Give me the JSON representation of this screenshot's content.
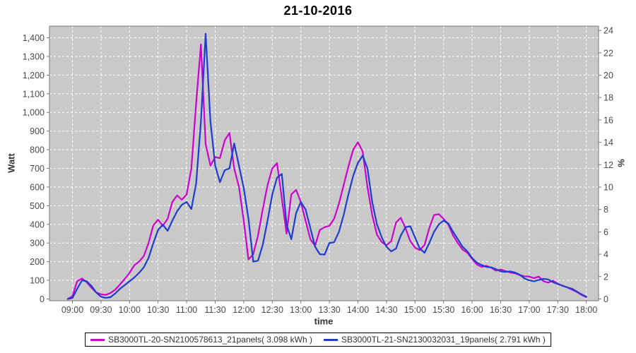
{
  "title": "21-10-2016",
  "chart_data": {
    "type": "line",
    "title": "21-10-2016",
    "xlabel": "time",
    "ylabel_left": "Watt",
    "ylabel_right": "%",
    "ylim_left": [
      0,
      1400
    ],
    "ylim_right": [
      0,
      24
    ],
    "grid": true,
    "legend_position": "bottom",
    "colors": {
      "plot_bg": "#c9c9c9",
      "grid": "#ffffff",
      "frame": "#777777",
      "tick_text": "#4a4a4a"
    },
    "x_ticks": [
      "09:00",
      "09:30",
      "10:00",
      "10:30",
      "11:00",
      "11:30",
      "12:00",
      "12:30",
      "13:00",
      "13:30",
      "14:00",
      "14:30",
      "15:00",
      "15:30",
      "16:00",
      "16:30",
      "17:00",
      "17:30",
      "18:00"
    ],
    "y_ticks_left": [
      "0",
      "100",
      "200",
      "300",
      "400",
      "500",
      "600",
      "700",
      "800",
      "900",
      "1,000",
      "1,100",
      "1,200",
      "1,300",
      "1,400"
    ],
    "y_ticks_right": [
      "0",
      "2",
      "4",
      "6",
      "8",
      "10",
      "12",
      "14",
      "16",
      "18",
      "20",
      "22",
      "24"
    ],
    "x": [
      "08:55",
      "09:00",
      "09:05",
      "09:10",
      "09:15",
      "09:20",
      "09:25",
      "09:30",
      "09:35",
      "09:40",
      "09:45",
      "09:50",
      "09:55",
      "10:00",
      "10:05",
      "10:10",
      "10:15",
      "10:20",
      "10:25",
      "10:30",
      "10:35",
      "10:40",
      "10:45",
      "10:50",
      "10:55",
      "11:00",
      "11:05",
      "11:10",
      "11:15",
      "11:20",
      "11:25",
      "11:30",
      "11:35",
      "11:40",
      "11:45",
      "11:50",
      "11:55",
      "12:00",
      "12:05",
      "12:10",
      "12:15",
      "12:20",
      "12:25",
      "12:30",
      "12:35",
      "12:40",
      "12:45",
      "12:50",
      "12:55",
      "13:00",
      "13:05",
      "13:10",
      "13:15",
      "13:20",
      "13:25",
      "13:30",
      "13:35",
      "13:40",
      "13:45",
      "13:50",
      "13:55",
      "14:00",
      "14:05",
      "14:10",
      "14:15",
      "14:20",
      "14:25",
      "14:30",
      "14:35",
      "14:40",
      "14:45",
      "14:50",
      "14:55",
      "15:00",
      "15:05",
      "15:10",
      "15:15",
      "15:20",
      "15:25",
      "15:30",
      "15:35",
      "15:40",
      "15:45",
      "15:50",
      "15:55",
      "16:00",
      "16:05",
      "16:10",
      "16:15",
      "16:20",
      "16:25",
      "16:30",
      "16:35",
      "16:40",
      "16:45",
      "16:50",
      "16:55",
      "17:00",
      "17:05",
      "17:10",
      "17:15",
      "17:20",
      "17:25",
      "17:30",
      "17:35",
      "17:40",
      "17:45",
      "17:50",
      "17:55",
      "18:00"
    ],
    "series": [
      {
        "name": "SB3000TL-20-SN2100578613_21panels( 3.098 kWh )",
        "energy": "3.098 kWh",
        "color": "#cc00cc",
        "values": [
          0,
          15,
          95,
          110,
          90,
          60,
          35,
          25,
          22,
          32,
          50,
          78,
          108,
          140,
          180,
          200,
          230,
          300,
          395,
          425,
          392,
          430,
          520,
          555,
          532,
          560,
          700,
          1050,
          1365,
          830,
          715,
          760,
          755,
          850,
          890,
          700,
          600,
          420,
          212,
          240,
          340,
          480,
          610,
          700,
          728,
          540,
          350,
          560,
          585,
          520,
          420,
          320,
          285,
          370,
          385,
          392,
          430,
          510,
          610,
          710,
          800,
          840,
          790,
          600,
          450,
          345,
          305,
          288,
          310,
          410,
          435,
          380,
          310,
          275,
          262,
          290,
          380,
          450,
          455,
          430,
          400,
          340,
          300,
          265,
          248,
          215,
          185,
          172,
          178,
          168,
          152,
          158,
          150,
          142,
          138,
          128,
          122,
          120,
          112,
          120,
          95,
          88,
          98,
          82,
          70,
          62,
          50,
          38,
          22,
          10
        ]
      },
      {
        "name": "SB3000TL-21-SN2130032031_19panels( 2.791 kWh )",
        "energy": "2.791 kWh",
        "color": "#1f3ccc",
        "values": [
          0,
          5,
          55,
          100,
          95,
          70,
          35,
          12,
          6,
          10,
          30,
          55,
          75,
          95,
          115,
          140,
          170,
          220,
          300,
          370,
          398,
          365,
          420,
          470,
          505,
          520,
          482,
          620,
          950,
          1422,
          950,
          715,
          626,
          690,
          700,
          834,
          714,
          595,
          430,
          200,
          205,
          290,
          420,
          560,
          650,
          670,
          400,
          320,
          460,
          520,
          480,
          380,
          280,
          240,
          238,
          300,
          304,
          360,
          450,
          560,
          660,
          730,
          768,
          700,
          520,
          400,
          330,
          280,
          255,
          270,
          340,
          385,
          390,
          330,
          270,
          248,
          300,
          360,
          400,
          420,
          405,
          360,
          320,
          280,
          255,
          220,
          195,
          182,
          172,
          170,
          160,
          148,
          145,
          148,
          142,
          130,
          110,
          100,
          95,
          102,
          108,
          105,
          90,
          80,
          72,
          62,
          55,
          40,
          25,
          12
        ]
      }
    ]
  }
}
